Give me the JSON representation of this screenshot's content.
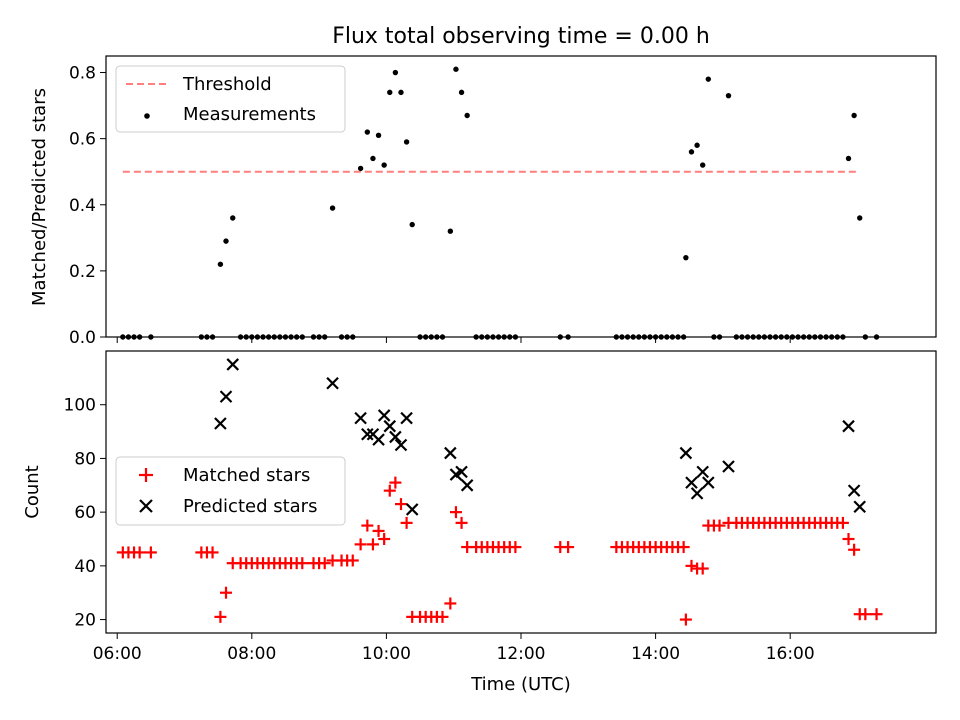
{
  "title": "Flux total observing time = 0.00 h",
  "colors": {
    "threshold": "#ff7f7f",
    "measurements": "#000000",
    "matched": "#ff0000",
    "predicted": "#000000"
  },
  "chart_data": [
    {
      "type": "scatter",
      "ylabel": "Matched/Predicted stars",
      "ylim": [
        0,
        0.85
      ],
      "yticks": [
        {
          "value": 0.0,
          "label": "0.0"
        },
        {
          "value": 0.2,
          "label": "0.2"
        },
        {
          "value": 0.4,
          "label": "0.4"
        },
        {
          "value": 0.6,
          "label": "0.6"
        },
        {
          "value": 0.8,
          "label": "0.8"
        }
      ],
      "legend": {
        "position": "upper-left",
        "entries": [
          "Threshold",
          "Measurements"
        ]
      },
      "threshold": {
        "name": "Threshold",
        "value": 0.5,
        "x": [
          "06:05",
          "17:00"
        ]
      },
      "series": [
        {
          "name": "Measurements",
          "marker": "dot",
          "points": [
            [
              "06:05",
              0
            ],
            [
              "06:10",
              0
            ],
            [
              "06:15",
              0
            ],
            [
              "06:20",
              0
            ],
            [
              "06:30",
              0
            ],
            [
              "07:15",
              0
            ],
            [
              "07:20",
              0
            ],
            [
              "07:25",
              0
            ],
            [
              "07:32",
              0.22
            ],
            [
              "07:37",
              0.29
            ],
            [
              "07:43",
              0.36
            ],
            [
              "07:50",
              0
            ],
            [
              "07:55",
              0
            ],
            [
              "08:00",
              0
            ],
            [
              "08:05",
              0
            ],
            [
              "08:10",
              0
            ],
            [
              "08:15",
              0
            ],
            [
              "08:20",
              0
            ],
            [
              "08:25",
              0
            ],
            [
              "08:30",
              0
            ],
            [
              "08:35",
              0
            ],
            [
              "08:40",
              0
            ],
            [
              "08:45",
              0
            ],
            [
              "08:55",
              0
            ],
            [
              "09:00",
              0
            ],
            [
              "09:05",
              0
            ],
            [
              "09:12",
              0.39
            ],
            [
              "09:20",
              0
            ],
            [
              "09:25",
              0
            ],
            [
              "09:30",
              0
            ],
            [
              "09:37",
              0.51
            ],
            [
              "09:43",
              0.62
            ],
            [
              "09:48",
              0.54
            ],
            [
              "09:53",
              0.61
            ],
            [
              "09:58",
              0.52
            ],
            [
              "10:03",
              0.74
            ],
            [
              "10:08",
              0.8
            ],
            [
              "10:13",
              0.74
            ],
            [
              "10:18",
              0.59
            ],
            [
              "10:23",
              0.34
            ],
            [
              "10:30",
              0
            ],
            [
              "10:35",
              0
            ],
            [
              "10:40",
              0
            ],
            [
              "10:45",
              0
            ],
            [
              "10:50",
              0
            ],
            [
              "10:57",
              0.32
            ],
            [
              "11:02",
              0.81
            ],
            [
              "11:07",
              0.74
            ],
            [
              "11:12",
              0.67
            ],
            [
              "11:20",
              0
            ],
            [
              "11:25",
              0
            ],
            [
              "11:30",
              0
            ],
            [
              "11:35",
              0
            ],
            [
              "11:40",
              0
            ],
            [
              "11:45",
              0
            ],
            [
              "11:50",
              0
            ],
            [
              "11:55",
              0
            ],
            [
              "12:35",
              0
            ],
            [
              "12:42",
              0
            ],
            [
              "13:25",
              0
            ],
            [
              "13:30",
              0
            ],
            [
              "13:35",
              0
            ],
            [
              "13:40",
              0
            ],
            [
              "13:45",
              0
            ],
            [
              "13:50",
              0
            ],
            [
              "13:55",
              0
            ],
            [
              "14:00",
              0
            ],
            [
              "14:05",
              0
            ],
            [
              "14:10",
              0
            ],
            [
              "14:15",
              0
            ],
            [
              "14:20",
              0
            ],
            [
              "14:25",
              0
            ],
            [
              "14:27",
              0.24
            ],
            [
              "14:32",
              0.56
            ],
            [
              "14:37",
              0.58
            ],
            [
              "14:42",
              0.52
            ],
            [
              "14:47",
              0.78
            ],
            [
              "14:52",
              0
            ],
            [
              "14:57",
              0
            ],
            [
              "15:05",
              0.73
            ],
            [
              "15:12",
              0
            ],
            [
              "15:17",
              0
            ],
            [
              "15:22",
              0
            ],
            [
              "15:27",
              0
            ],
            [
              "15:32",
              0
            ],
            [
              "15:37",
              0
            ],
            [
              "15:42",
              0
            ],
            [
              "15:47",
              0
            ],
            [
              "15:52",
              0
            ],
            [
              "15:57",
              0
            ],
            [
              "16:02",
              0
            ],
            [
              "16:07",
              0
            ],
            [
              "16:12",
              0
            ],
            [
              "16:17",
              0
            ],
            [
              "16:22",
              0
            ],
            [
              "16:27",
              0
            ],
            [
              "16:32",
              0
            ],
            [
              "16:37",
              0
            ],
            [
              "16:42",
              0
            ],
            [
              "16:47",
              0
            ],
            [
              "16:52",
              0.54
            ],
            [
              "16:57",
              0.67
            ],
            [
              "17:02",
              0.36
            ],
            [
              "17:07",
              0
            ],
            [
              "17:17",
              0
            ]
          ]
        }
      ]
    },
    {
      "type": "scatter",
      "xlabel": "Time (UTC)",
      "ylabel": "Count",
      "xlim": [
        "05:50",
        "18:10"
      ],
      "ylim": [
        15,
        120
      ],
      "xticks": [
        "06:00",
        "08:00",
        "10:00",
        "12:00",
        "14:00",
        "16:00"
      ],
      "yticks": [
        {
          "value": 20,
          "label": "20"
        },
        {
          "value": 40,
          "label": "40"
        },
        {
          "value": 60,
          "label": "60"
        },
        {
          "value": 80,
          "label": "80"
        },
        {
          "value": 100,
          "label": "100"
        }
      ],
      "legend": {
        "position": "center-left",
        "entries": [
          "Matched stars",
          "Predicted stars"
        ]
      },
      "series": [
        {
          "name": "Matched stars",
          "marker": "plus",
          "points": [
            [
              "06:05",
              45
            ],
            [
              "06:10",
              45
            ],
            [
              "06:15",
              45
            ],
            [
              "06:20",
              45
            ],
            [
              "06:30",
              45
            ],
            [
              "07:15",
              45
            ],
            [
              "07:20",
              45
            ],
            [
              "07:25",
              45
            ],
            [
              "07:32",
              21
            ],
            [
              "07:37",
              30
            ],
            [
              "07:43",
              41
            ],
            [
              "07:50",
              41
            ],
            [
              "07:55",
              41
            ],
            [
              "08:00",
              41
            ],
            [
              "08:05",
              41
            ],
            [
              "08:10",
              41
            ],
            [
              "08:15",
              41
            ],
            [
              "08:20",
              41
            ],
            [
              "08:25",
              41
            ],
            [
              "08:30",
              41
            ],
            [
              "08:35",
              41
            ],
            [
              "08:40",
              41
            ],
            [
              "08:45",
              41
            ],
            [
              "08:55",
              41
            ],
            [
              "09:00",
              41
            ],
            [
              "09:05",
              41
            ],
            [
              "09:12",
              42
            ],
            [
              "09:20",
              42
            ],
            [
              "09:25",
              42
            ],
            [
              "09:30",
              42
            ],
            [
              "09:37",
              48
            ],
            [
              "09:43",
              55
            ],
            [
              "09:48",
              48
            ],
            [
              "09:53",
              53
            ],
            [
              "09:58",
              50
            ],
            [
              "10:03",
              68
            ],
            [
              "10:08",
              71
            ],
            [
              "10:13",
              63
            ],
            [
              "10:18",
              56
            ],
            [
              "10:23",
              21
            ],
            [
              "10:30",
              21
            ],
            [
              "10:35",
              21
            ],
            [
              "10:40",
              21
            ],
            [
              "10:45",
              21
            ],
            [
              "10:50",
              21
            ],
            [
              "10:57",
              26
            ],
            [
              "11:02",
              60
            ],
            [
              "11:07",
              56
            ],
            [
              "11:12",
              47
            ],
            [
              "11:20",
              47
            ],
            [
              "11:25",
              47
            ],
            [
              "11:30",
              47
            ],
            [
              "11:35",
              47
            ],
            [
              "11:40",
              47
            ],
            [
              "11:45",
              47
            ],
            [
              "11:50",
              47
            ],
            [
              "11:55",
              47
            ],
            [
              "12:35",
              47
            ],
            [
              "12:42",
              47
            ],
            [
              "13:25",
              47
            ],
            [
              "13:30",
              47
            ],
            [
              "13:35",
              47
            ],
            [
              "13:40",
              47
            ],
            [
              "13:45",
              47
            ],
            [
              "13:50",
              47
            ],
            [
              "13:55",
              47
            ],
            [
              "14:00",
              47
            ],
            [
              "14:05",
              47
            ],
            [
              "14:10",
              47
            ],
            [
              "14:15",
              47
            ],
            [
              "14:20",
              47
            ],
            [
              "14:25",
              47
            ],
            [
              "14:27",
              20
            ],
            [
              "14:32",
              40
            ],
            [
              "14:37",
              39
            ],
            [
              "14:42",
              39
            ],
            [
              "14:47",
              55
            ],
            [
              "14:52",
              55
            ],
            [
              "14:57",
              55
            ],
            [
              "15:05",
              56
            ],
            [
              "15:12",
              56
            ],
            [
              "15:17",
              56
            ],
            [
              "15:22",
              56
            ],
            [
              "15:27",
              56
            ],
            [
              "15:32",
              56
            ],
            [
              "15:37",
              56
            ],
            [
              "15:42",
              56
            ],
            [
              "15:47",
              56
            ],
            [
              "15:52",
              56
            ],
            [
              "15:57",
              56
            ],
            [
              "16:02",
              56
            ],
            [
              "16:07",
              56
            ],
            [
              "16:12",
              56
            ],
            [
              "16:17",
              56
            ],
            [
              "16:22",
              56
            ],
            [
              "16:27",
              56
            ],
            [
              "16:32",
              56
            ],
            [
              "16:37",
              56
            ],
            [
              "16:42",
              56
            ],
            [
              "16:47",
              56
            ],
            [
              "16:52",
              50
            ],
            [
              "16:57",
              46
            ],
            [
              "17:02",
              22
            ],
            [
              "17:07",
              22
            ],
            [
              "17:17",
              22
            ]
          ]
        },
        {
          "name": "Predicted stars",
          "marker": "x",
          "points": [
            [
              "07:32",
              93
            ],
            [
              "07:37",
              103
            ],
            [
              "07:43",
              115
            ],
            [
              "09:12",
              108
            ],
            [
              "09:37",
              95
            ],
            [
              "09:43",
              89
            ],
            [
              "09:48",
              89
            ],
            [
              "09:53",
              87
            ],
            [
              "09:58",
              96
            ],
            [
              "10:03",
              92
            ],
            [
              "10:08",
              88
            ],
            [
              "10:13",
              85
            ],
            [
              "10:18",
              95
            ],
            [
              "10:23",
              61
            ],
            [
              "10:57",
              82
            ],
            [
              "11:02",
              74
            ],
            [
              "11:07",
              75
            ],
            [
              "11:12",
              70
            ],
            [
              "14:27",
              82
            ],
            [
              "14:32",
              71
            ],
            [
              "14:37",
              67
            ],
            [
              "14:42",
              75
            ],
            [
              "14:47",
              71
            ],
            [
              "15:05",
              77
            ],
            [
              "16:52",
              92
            ],
            [
              "16:57",
              68
            ],
            [
              "17:02",
              62
            ]
          ]
        }
      ]
    }
  ]
}
